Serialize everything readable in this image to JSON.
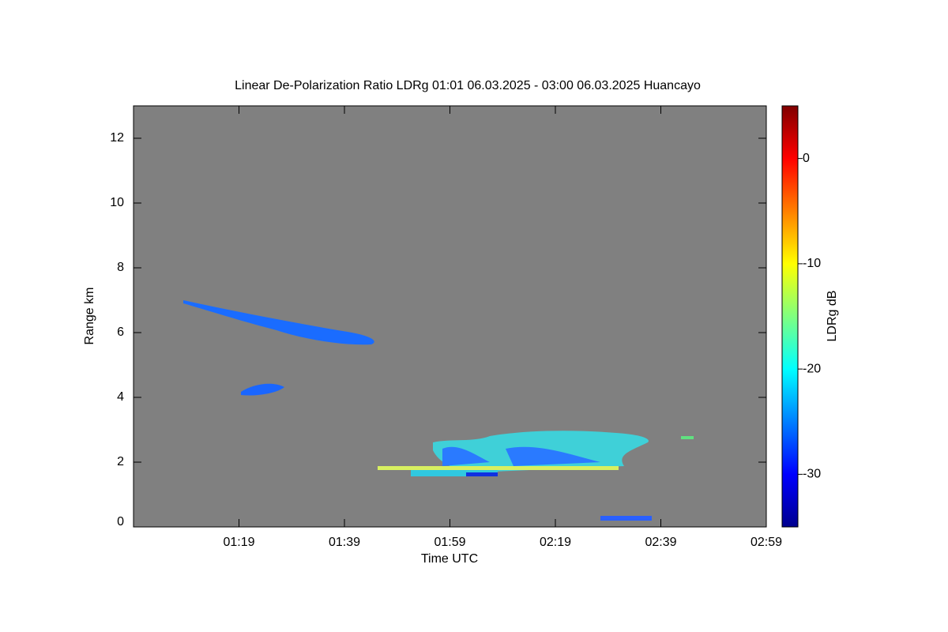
{
  "chart_data": {
    "type": "heatmap",
    "title": "Linear De-Polarization Ratio LDRg   01:01 06.03.2025 - 03:00 06.03.2025 Huancayo",
    "x_label": "Time UTC",
    "y_label": "Range km",
    "colorbar_label": "LDRg dB",
    "xlim": [
      59,
      179
    ],
    "xticks": [
      {
        "value": 79,
        "label": "01:19"
      },
      {
        "value": 99,
        "label": "01:39"
      },
      {
        "value": 119,
        "label": "01:59"
      },
      {
        "value": 139,
        "label": "02:19"
      },
      {
        "value": 159,
        "label": "02:39"
      },
      {
        "value": 179,
        "label": "02:59"
      }
    ],
    "ylim": [
      0,
      13
    ],
    "yticks": [
      0,
      2,
      4,
      6,
      8,
      10,
      12
    ],
    "clim": [
      -35,
      5
    ],
    "cticks": [
      0,
      -10,
      -20,
      -30
    ],
    "colormap": "jet",
    "background": "#808080"
  }
}
